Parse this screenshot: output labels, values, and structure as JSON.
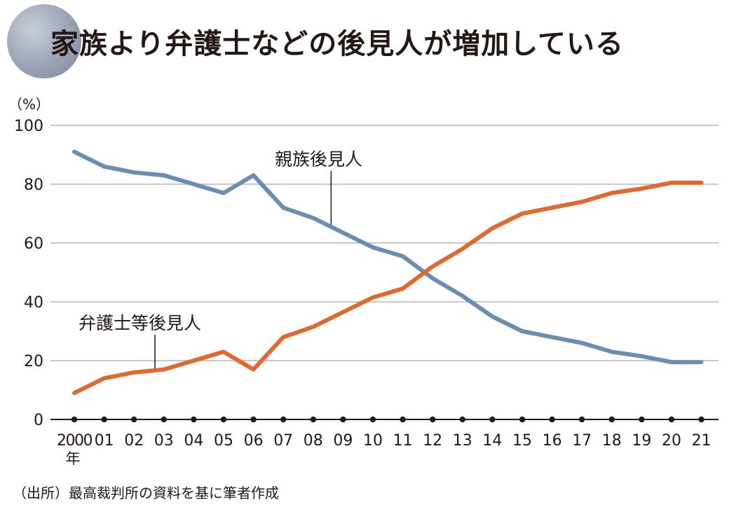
{
  "title": "家族より弁護士などの後見人が増加している",
  "source": "（出所）最高裁判所の資料を基に筆者作成",
  "chart_data": {
    "type": "line",
    "ylabel": "（%）",
    "ylim": [
      0,
      100
    ],
    "yticks": [
      0,
      20,
      40,
      60,
      80,
      100
    ],
    "grid": true,
    "categories": [
      "2000",
      "01",
      "02",
      "03",
      "04",
      "05",
      "06",
      "07",
      "08",
      "09",
      "10",
      "11",
      "12",
      "13",
      "14",
      "15",
      "16",
      "17",
      "18",
      "19",
      "20",
      "21"
    ],
    "first_year_suffix": "年",
    "series": [
      {
        "name": "親族後見人",
        "color": "#6a8db2",
        "values": [
          91,
          86,
          84,
          83,
          80,
          77,
          83,
          72,
          68.5,
          63.5,
          58.5,
          55.5,
          48,
          42,
          35,
          30,
          28,
          26,
          23,
          21.5,
          19.5,
          19.5
        ]
      },
      {
        "name": "弁護士等後見人",
        "color": "#e06a2e",
        "values": [
          9,
          14,
          16,
          17,
          20,
          23,
          17,
          28,
          31.5,
          36.5,
          41.5,
          44.5,
          52,
          58,
          65,
          70,
          72,
          74,
          77,
          78.5,
          80.5,
          80.5
        ]
      }
    ]
  }
}
